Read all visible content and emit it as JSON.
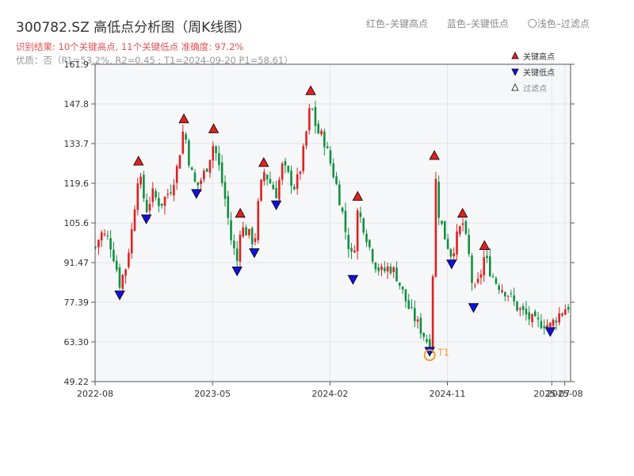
{
  "header": {
    "title": "300782.SZ 高低点分析图（周K线图）",
    "subtitle": "识别结果: 10个关键高点, 11个关键低点  准确度: 97.2%",
    "quality": "优质：否（P1=53.2%, R2=0.45 ; T1=2024-09-20 P1=58.61）",
    "legend_red": "红色–关键高点",
    "legend_blue": "蓝色–关键低点",
    "legend_light": "〇浅色–过滤点"
  },
  "colors": {
    "up": "#e02020",
    "down": "#129040",
    "high_marker": "#e02020",
    "low_marker": "#1010e0",
    "t1": "#f0a030"
  },
  "chart_data": {
    "type": "candlestick",
    "ytick_labels": [
      "49.22",
      "63.30",
      "77.39",
      "91.47",
      "105.6",
      "119.6",
      "133.7",
      "147.8",
      "161.9"
    ],
    "ylim": [
      49.22,
      161.9
    ],
    "xtick_labels": [
      "2022-08",
      "2023-05",
      "2024-02",
      "2024-11",
      "2025-07",
      "2025-08"
    ],
    "xlim": [
      "2022-08",
      "2025-08"
    ],
    "legend": {
      "highs": "关键高点",
      "lows": "关键低点",
      "filtered": "过滤点",
      "position": "top-right"
    },
    "t1_label": "T1",
    "t1": {
      "x": 2024.72,
      "y": 58.61
    },
    "key_highs": [
      {
        "x": 2022.86,
        "y": 127.5
      },
      {
        "x": 2023.15,
        "y": 142.5
      },
      {
        "x": 2023.34,
        "y": 139.0
      },
      {
        "x": 2023.51,
        "y": 109.0
      },
      {
        "x": 2023.66,
        "y": 127.0
      },
      {
        "x": 2023.96,
        "y": 152.5
      },
      {
        "x": 2024.26,
        "y": 115.0
      },
      {
        "x": 2024.75,
        "y": 129.5
      },
      {
        "x": 2024.93,
        "y": 109.0
      },
      {
        "x": 2025.07,
        "y": 97.5
      }
    ],
    "key_lows": [
      {
        "x": 2022.74,
        "y": 80.0
      },
      {
        "x": 2022.91,
        "y": 107.0
      },
      {
        "x": 2023.23,
        "y": 116.0
      },
      {
        "x": 2023.49,
        "y": 88.5
      },
      {
        "x": 2023.6,
        "y": 95.0
      },
      {
        "x": 2023.74,
        "y": 112.0
      },
      {
        "x": 2024.23,
        "y": 85.5
      },
      {
        "x": 2024.72,
        "y": 60.0
      },
      {
        "x": 2024.86,
        "y": 91.0
      },
      {
        "x": 2025.0,
        "y": 75.5
      },
      {
        "x": 2025.49,
        "y": 67.0
      }
    ],
    "anchors": [
      {
        "x": 2022.58,
        "y": 96
      },
      {
        "x": 2022.62,
        "y": 102
      },
      {
        "x": 2022.67,
        "y": 100
      },
      {
        "x": 2022.71,
        "y": 92
      },
      {
        "x": 2022.74,
        "y": 84
      },
      {
        "x": 2022.78,
        "y": 90
      },
      {
        "x": 2022.82,
        "y": 104
      },
      {
        "x": 2022.86,
        "y": 124
      },
      {
        "x": 2022.91,
        "y": 110
      },
      {
        "x": 2022.95,
        "y": 116
      },
      {
        "x": 2023.0,
        "y": 112
      },
      {
        "x": 2023.07,
        "y": 118
      },
      {
        "x": 2023.11,
        "y": 126
      },
      {
        "x": 2023.15,
        "y": 140
      },
      {
        "x": 2023.19,
        "y": 125
      },
      {
        "x": 2023.23,
        "y": 118
      },
      {
        "x": 2023.27,
        "y": 122
      },
      {
        "x": 2023.3,
        "y": 126
      },
      {
        "x": 2023.34,
        "y": 134
      },
      {
        "x": 2023.38,
        "y": 124
      },
      {
        "x": 2023.42,
        "y": 112
      },
      {
        "x": 2023.45,
        "y": 100
      },
      {
        "x": 2023.49,
        "y": 92
      },
      {
        "x": 2023.51,
        "y": 104
      },
      {
        "x": 2023.56,
        "y": 102
      },
      {
        "x": 2023.6,
        "y": 98
      },
      {
        "x": 2023.63,
        "y": 115
      },
      {
        "x": 2023.66,
        "y": 124
      },
      {
        "x": 2023.7,
        "y": 120
      },
      {
        "x": 2023.74,
        "y": 116
      },
      {
        "x": 2023.78,
        "y": 126
      },
      {
        "x": 2023.82,
        "y": 122
      },
      {
        "x": 2023.86,
        "y": 118
      },
      {
        "x": 2023.9,
        "y": 126
      },
      {
        "x": 2023.96,
        "y": 148
      },
      {
        "x": 2024.0,
        "y": 138
      },
      {
        "x": 2024.04,
        "y": 136
      },
      {
        "x": 2024.08,
        "y": 128
      },
      {
        "x": 2024.12,
        "y": 120
      },
      {
        "x": 2024.16,
        "y": 110
      },
      {
        "x": 2024.19,
        "y": 100
      },
      {
        "x": 2024.23,
        "y": 92
      },
      {
        "x": 2024.26,
        "y": 110
      },
      {
        "x": 2024.3,
        "y": 104
      },
      {
        "x": 2024.34,
        "y": 96
      },
      {
        "x": 2024.38,
        "y": 90
      },
      {
        "x": 2024.42,
        "y": 88
      },
      {
        "x": 2024.46,
        "y": 90
      },
      {
        "x": 2024.5,
        "y": 88
      },
      {
        "x": 2024.54,
        "y": 82
      },
      {
        "x": 2024.58,
        "y": 76
      },
      {
        "x": 2024.62,
        "y": 72
      },
      {
        "x": 2024.66,
        "y": 68
      },
      {
        "x": 2024.7,
        "y": 64
      },
      {
        "x": 2024.72,
        "y": 62
      },
      {
        "x": 2024.74,
        "y": 88
      },
      {
        "x": 2024.75,
        "y": 126
      },
      {
        "x": 2024.78,
        "y": 108
      },
      {
        "x": 2024.82,
        "y": 100
      },
      {
        "x": 2024.86,
        "y": 94
      },
      {
        "x": 2024.89,
        "y": 100
      },
      {
        "x": 2024.93,
        "y": 106
      },
      {
        "x": 2024.97,
        "y": 94
      },
      {
        "x": 2025.0,
        "y": 80
      },
      {
        "x": 2025.04,
        "y": 86
      },
      {
        "x": 2025.07,
        "y": 94
      },
      {
        "x": 2025.11,
        "y": 88
      },
      {
        "x": 2025.15,
        "y": 84
      },
      {
        "x": 2025.19,
        "y": 82
      },
      {
        "x": 2025.23,
        "y": 80
      },
      {
        "x": 2025.27,
        "y": 76
      },
      {
        "x": 2025.31,
        "y": 74
      },
      {
        "x": 2025.35,
        "y": 72
      },
      {
        "x": 2025.4,
        "y": 70
      },
      {
        "x": 2025.45,
        "y": 70
      },
      {
        "x": 2025.49,
        "y": 69
      },
      {
        "x": 2025.53,
        "y": 72
      },
      {
        "x": 2025.56,
        "y": 74
      },
      {
        "x": 2025.6,
        "y": 76
      }
    ]
  }
}
